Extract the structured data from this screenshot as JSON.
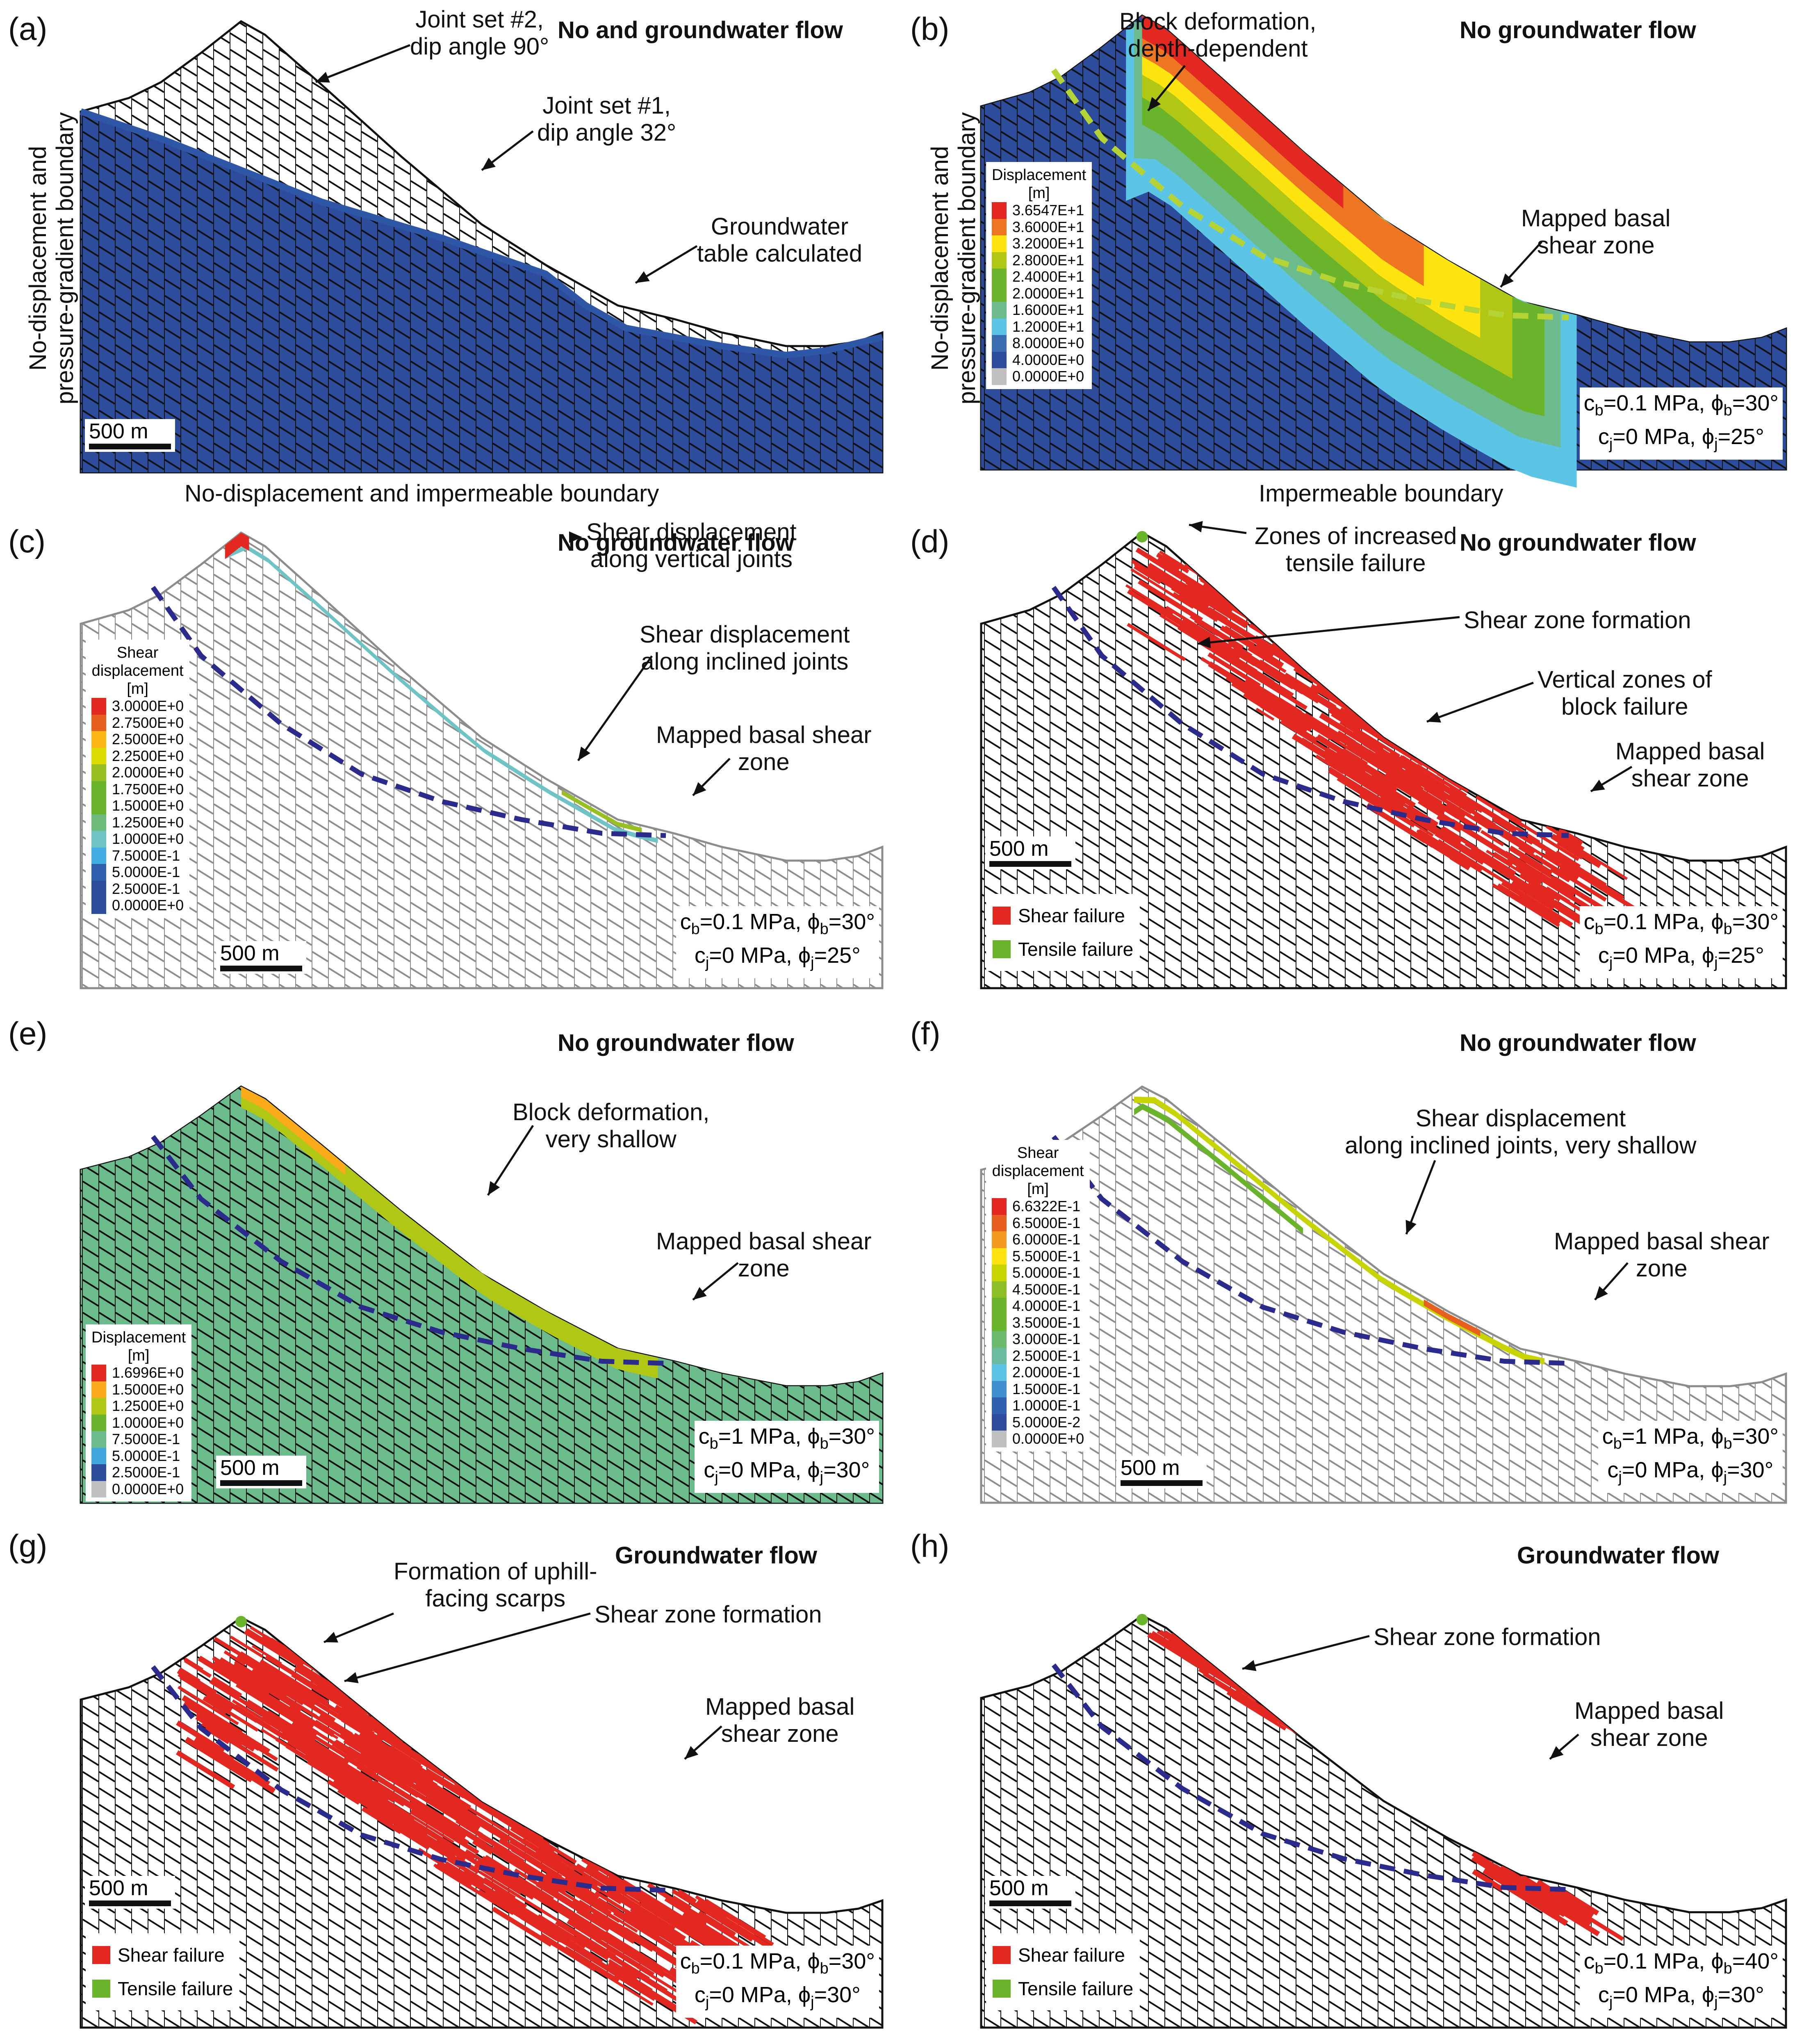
{
  "figure": {
    "panels": [
      {
        "id": "a",
        "label": "(a)",
        "flow_condition": "No and groundwater flow",
        "annotations": [
          "Joint set #2,\ndip angle 90°",
          "Joint set #1,\ndip angle 32°",
          "Groundwater\ntable calculated"
        ],
        "left_boundary": "No-displacement and\npressure-gradient boundary",
        "bottom_boundary": "No-displacement and impermeable boundary",
        "scale_bar": "500 m"
      },
      {
        "id": "b",
        "label": "(b)",
        "flow_condition": "No groundwater flow",
        "annotations": [
          "Block deformation,\ndepth-dependent",
          "Mapped basal\nshear zone"
        ],
        "left_boundary": "No-displacement and\npressure-gradient boundary",
        "bottom_boundary": "Impermeable boundary",
        "params": {
          "cb": "0.1 MPa",
          "phib": "30°",
          "cj": "0 MPa",
          "phij": "25°"
        },
        "legend": {
          "title": "Displacement\n[m]",
          "values": [
            "3.6547E+1",
            "3.6000E+1",
            "3.2000E+1",
            "2.8000E+1",
            "2.4000E+1",
            "2.0000E+1",
            "1.6000E+1",
            "1.2000E+1",
            "8.0000E+0",
            "4.0000E+0",
            "0.0000E+0"
          ],
          "colors": [
            "#e32822",
            "#ee7623",
            "#ffe40f",
            "#b0c815",
            "#6ab42c",
            "#6ab42c",
            "#6cbb8c",
            "#5cc4e4",
            "#3b6db1",
            "#2d4d9c",
            "#c0c0c0"
          ]
        }
      },
      {
        "id": "c",
        "label": "(c)",
        "flow_condition": "No groundwater flow",
        "annotations": [
          "Shear displacement\nalong vertical joints",
          "Shear displacement\nalong inclined joints",
          "Mapped basal shear\nzone"
        ],
        "scale_bar": "500 m",
        "params": {
          "cb": "0.1 MPa",
          "phib": "30°",
          "cj": "0 MPa",
          "phij": "25°"
        },
        "legend": {
          "title": "Shear\ndisplacement\n[m]",
          "values": [
            "3.0000E+0",
            "2.7500E+0",
            "2.5000E+0",
            "2.2500E+0",
            "2.0000E+0",
            "1.7500E+0",
            "1.5000E+0",
            "1.2500E+0",
            "1.0000E+0",
            "7.5000E-1",
            "5.0000E-1",
            "2.5000E-1",
            "0.0000E+0"
          ],
          "colors": [
            "#e32822",
            "#e8601f",
            "#fbb714",
            "#dcdc00",
            "#97c023",
            "#6ab42c",
            "#6ab42c",
            "#6cbb7a",
            "#6ec3c5",
            "#41aee3",
            "#3160ae",
            "#2d4d9c",
            "#2d4d9c"
          ]
        }
      },
      {
        "id": "d",
        "label": "(d)",
        "flow_condition": "No groundwater flow",
        "annotations": [
          "Zones of increased\ntensile failure",
          "Shear zone formation",
          "Vertical zones of\nblock failure",
          "Mapped basal\nshear zone"
        ],
        "scale_bar": "500 m",
        "params": {
          "cb": "0.1 MPa",
          "phib": "30°",
          "cj": "0 MPa",
          "phij": "25°"
        },
        "failure_legend": [
          {
            "label": "Shear failure",
            "color": "#e32822"
          },
          {
            "label": "Tensile failure",
            "color": "#6ab42c"
          }
        ]
      },
      {
        "id": "e",
        "label": "(e)",
        "flow_condition": "No groundwater flow",
        "annotations": [
          "Block deformation,\nvery shallow",
          "Mapped basal shear\nzone"
        ],
        "scale_bar": "500 m",
        "params": {
          "cb": "1 MPa",
          "phib": "30°",
          "cj": "0 MPa",
          "phij": "30°"
        },
        "legend": {
          "title": "Displacement\n[m]",
          "values": [
            "1.6996E+0",
            "1.5000E+0",
            "1.2500E+0",
            "1.0000E+0",
            "7.5000E-1",
            "5.0000E-1",
            "2.5000E-1",
            "0.0000E+0"
          ],
          "colors": [
            "#e32822",
            "#fbaa1a",
            "#b0c815",
            "#6ab42c",
            "#6cbb8c",
            "#41a7df",
            "#2d4d9c",
            "#c0c0c0"
          ]
        }
      },
      {
        "id": "f",
        "label": "(f)",
        "flow_condition": "No groundwater flow",
        "annotations": [
          "Shear displacement\nalong inclined joints, very shallow",
          "Mapped basal shear\nzone"
        ],
        "scale_bar": "500 m",
        "params": {
          "cb": "1 MPa",
          "phib": "30°",
          "cj": "0 MPa",
          "phij": "30°"
        },
        "legend": {
          "title": "Shear\ndisplacement\n[m]",
          "values": [
            "6.6322E-1",
            "6.5000E-1",
            "6.0000E-1",
            "5.5000E-1",
            "5.0000E-1",
            "4.5000E-1",
            "4.0000E-1",
            "3.5000E-1",
            "3.0000E-1",
            "2.5000E-1",
            "2.0000E-1",
            "1.5000E-1",
            "1.0000E-1",
            "5.0000E-2",
            "0.0000E+0"
          ],
          "colors": [
            "#e32822",
            "#e8601f",
            "#f39a1f",
            "#ffe40f",
            "#c8d400",
            "#8cbf26",
            "#6ab42c",
            "#6ab42c",
            "#6cbb6c",
            "#6cbba0",
            "#5cc4e4",
            "#3f8fcf",
            "#3160ae",
            "#2d4d9c",
            "#c0c0c0"
          ]
        }
      },
      {
        "id": "g",
        "label": "(g)",
        "flow_condition": "Groundwater flow",
        "annotations": [
          "Formation of uphill-\nfacing scarps",
          "Shear zone formation",
          "Mapped basal\nshear zone"
        ],
        "scale_bar": "500 m",
        "params": {
          "cb": "0.1 MPa",
          "phib": "30°",
          "cj": "0 MPa",
          "phij": "30°"
        },
        "failure_legend": [
          {
            "label": "Shear failure",
            "color": "#e32822"
          },
          {
            "label": "Tensile failure",
            "color": "#6ab42c"
          }
        ]
      },
      {
        "id": "h",
        "label": "(h)",
        "flow_condition": "Groundwater flow",
        "annotations": [
          "Shear zone formation",
          "Mapped basal\nshear zone"
        ],
        "scale_bar": "500 m",
        "params": {
          "cb": "0.1 MPa",
          "phib": "40°",
          "cj": "0 MPa",
          "phij": "30°"
        },
        "failure_legend": [
          {
            "label": "Shear failure",
            "color": "#e32822"
          },
          {
            "label": "Tensile failure",
            "color": "#6ab42c"
          }
        ]
      }
    ],
    "colors": {
      "mesh_line": "#111111",
      "mesh_line_light": "#8c8c8c",
      "water_fill": "#2d4d9c",
      "water_table": "#2f57a8",
      "basal_shear_b": "#b5d334",
      "basal_shear": "#2b2b8c",
      "shear_failure": "#e32822",
      "tensile_failure": "#6ab42c",
      "green_block": "#6cbb8c",
      "blue_block": "#41a7df"
    }
  }
}
